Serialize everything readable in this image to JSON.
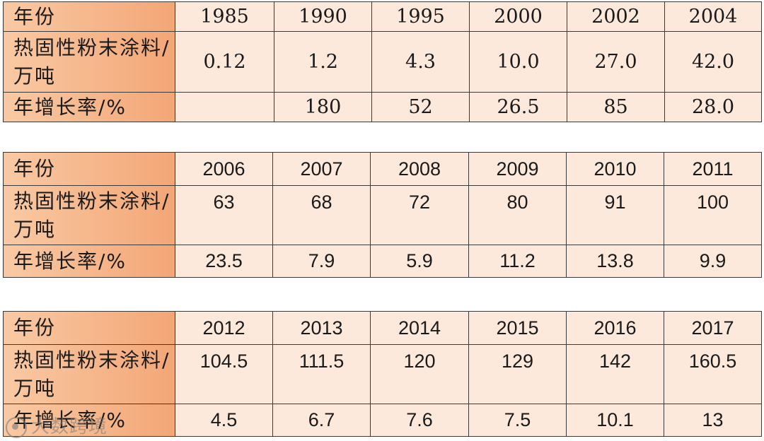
{
  "row_labels": {
    "year": "年份",
    "output": "热固性粉末涂料/万吨",
    "growth": "年增长率/%"
  },
  "tables": [
    {
      "years": [
        "1985",
        "1990",
        "1995",
        "2000",
        "2002",
        "2004"
      ],
      "output": [
        "0.12",
        "1.2",
        "4.3",
        "10.0",
        "27.0",
        "42.0"
      ],
      "growth": [
        "",
        "180",
        "52",
        "26.5",
        "85",
        "28.0"
      ]
    },
    {
      "years": [
        "2006",
        "2007",
        "2008",
        "2009",
        "2010",
        "2011"
      ],
      "output": [
        "63",
        "68",
        "72",
        "80",
        "91",
        "100"
      ],
      "growth": [
        "23.5",
        "7.9",
        "5.9",
        "11.2",
        "13.8",
        "9.9"
      ]
    },
    {
      "years": [
        "2012",
        "2013",
        "2014",
        "2015",
        "2016",
        "2017"
      ],
      "output": [
        "104.5",
        "111.5",
        "120",
        "129",
        "142",
        "160.5"
      ],
      "growth": [
        "4.5",
        "6.7",
        "7.6",
        "7.5",
        "10.1",
        "13"
      ]
    }
  ],
  "watermark": {
    "icon": "eye-logo-icon",
    "text": "大数跨境"
  }
}
